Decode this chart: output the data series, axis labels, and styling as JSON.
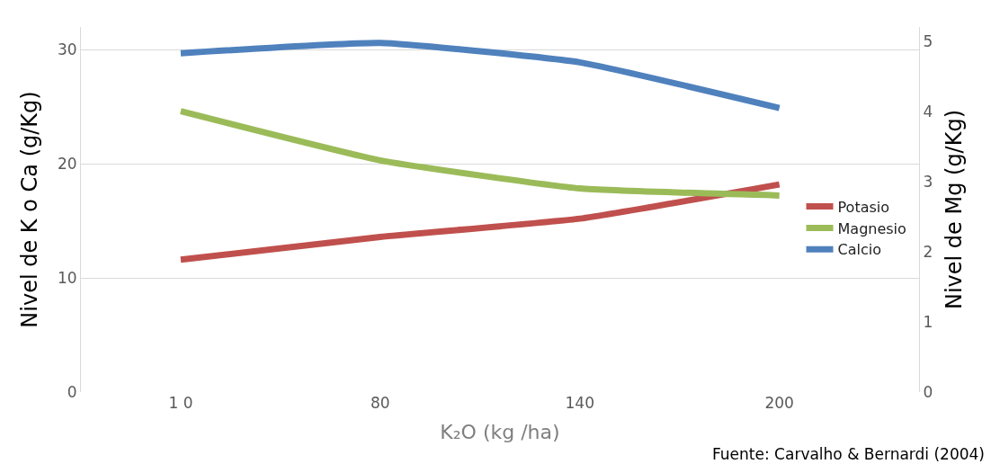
{
  "chart_data": {
    "type": "line",
    "xlabel": "K₂O (kg /ha)",
    "ylabel": "Nivel de K o Ca (g/Kg)",
    "y2label": "Nivel de Mg (g/Kg)",
    "categories": [
      "1 0",
      "80",
      "140",
      "200"
    ],
    "series": [
      {
        "name": "Potasio",
        "color": "#c0504d",
        "values": [
          11.6,
          13.6,
          15.2,
          18.2
        ]
      },
      {
        "name": "Magnesio",
        "color": "#9bbb59",
        "values": [
          4.0,
          3.3,
          2.9,
          2.8
        ],
        "axis": "y2"
      },
      {
        "name": "Calcio",
        "color": "#4f81bd",
        "values": [
          29.7,
          30.6,
          28.9,
          24.9
        ]
      }
    ],
    "ylim": [
      0,
      32
    ],
    "yticks": [
      0,
      10,
      20,
      30
    ],
    "y2lim": [
      0,
      5.2
    ],
    "y2ticks": [
      0,
      1,
      2,
      3,
      4,
      5
    ],
    "grid": "y",
    "legend": "right",
    "marker": "none",
    "line_style": "solid",
    "annotations": [
      "Fuente: Carvalho & Bernardi (2004)"
    ]
  }
}
